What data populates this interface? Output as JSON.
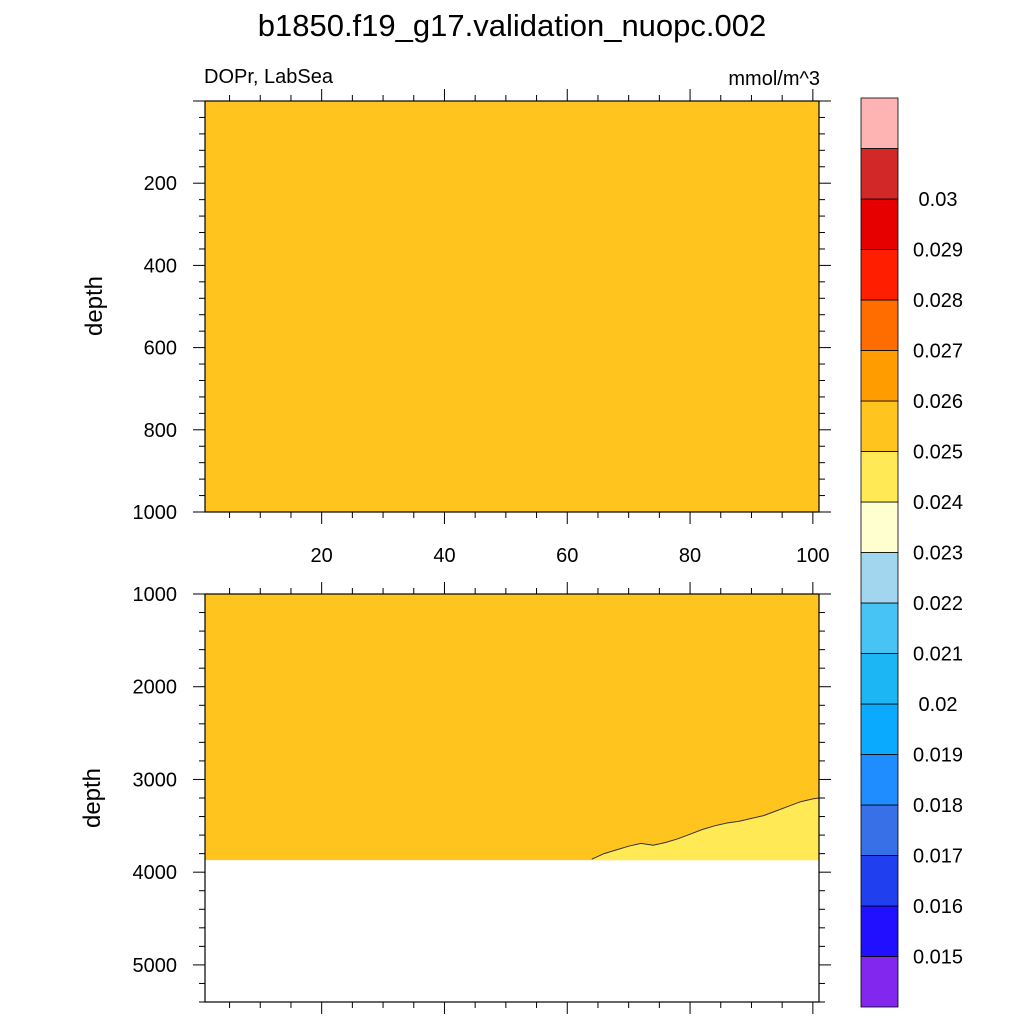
{
  "figure": {
    "title": "b1850.f19_g17.validation_nuopc.002",
    "left_label": "DOPr, LabSea",
    "right_label": "mmol/m^3"
  },
  "chart_data": [
    {
      "type": "heatmap",
      "panel": "upper",
      "variable": "DOPr",
      "region": "LabSea",
      "units": "mmol/m^3",
      "xlabel": "",
      "ylabel": "depth",
      "xlim": [
        1,
        101
      ],
      "ylim": [
        1000,
        0
      ],
      "xticks": [
        20,
        40,
        60,
        80,
        100
      ],
      "yticks": [
        200,
        400,
        600,
        800,
        1000
      ],
      "fill_interval": [
        0.024,
        0.025
      ],
      "fill_color": "#ffc41e"
    },
    {
      "type": "heatmap",
      "panel": "lower",
      "xlabel": "",
      "ylabel": "depth",
      "xlim": [
        1,
        101
      ],
      "ylim": [
        5400,
        1000
      ],
      "yticks": [
        1000,
        2000,
        3000,
        4000,
        5000
      ],
      "valid_max_depth": 3870,
      "fill_interval": [
        0.024,
        0.025
      ],
      "fill_color": "#ffc41e",
      "lower_contour": {
        "level": 0.024,
        "region_below_color": "#ffe955",
        "x": [
          64,
          66,
          68,
          70,
          72,
          74,
          76,
          78,
          80,
          82,
          84,
          86,
          88,
          90,
          92,
          94,
          96,
          98,
          100,
          101
        ],
        "depth": [
          3860,
          3800,
          3760,
          3720,
          3690,
          3710,
          3680,
          3640,
          3590,
          3540,
          3500,
          3470,
          3450,
          3420,
          3390,
          3340,
          3290,
          3240,
          3210,
          3200
        ]
      }
    }
  ],
  "colorbar": {
    "levels": [
      "0.015",
      "0.016",
      "0.017",
      "0.018",
      "0.019",
      "0.02",
      "0.021",
      "0.022",
      "0.023",
      "0.024",
      "0.025",
      "0.026",
      "0.027",
      "0.028",
      "0.029",
      "0.03"
    ],
    "colors": [
      "#8228ee",
      "#2010ff",
      "#2040f0",
      "#3870e8",
      "#1f8cff",
      "#0aabff",
      "#1cb6f5",
      "#48c4f4",
      "#a2d6ee",
      "#ffffd0",
      "#ffe955",
      "#ffc41e",
      "#ff9c00",
      "#ff6c00",
      "#ff1e00",
      "#e60000",
      "#d22828",
      "#ffb4b4"
    ]
  }
}
